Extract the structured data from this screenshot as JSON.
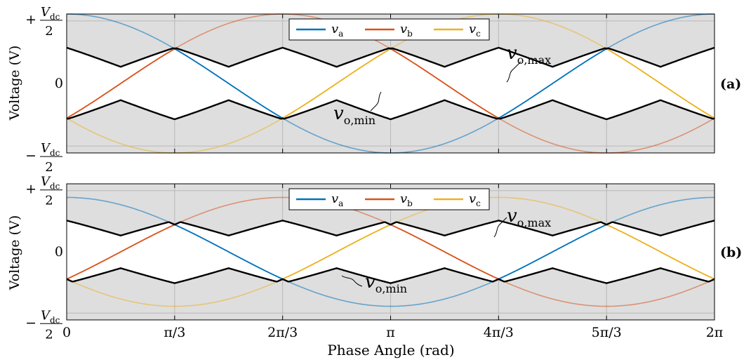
{
  "figure": {
    "xlabel": "Phase Angle (rad)",
    "ylabel": "Voltage (V)"
  },
  "yticks": {
    "top": {
      "sign": "+",
      "num": "V",
      "num_sub": "dc",
      "den": "2"
    },
    "mid": "0",
    "bot": {
      "sign": "−",
      "num": "V",
      "num_sub": "dc",
      "den": "2"
    }
  },
  "xticks": [
    "0",
    "π/3",
    "2π/3",
    "π",
    "4π/3",
    "5π/3",
    "2π"
  ],
  "legend": [
    {
      "key": "va",
      "sym": "v",
      "sub": "a",
      "color": "#0072BD"
    },
    {
      "key": "vb",
      "sym": "v",
      "sub": "b",
      "color": "#D95319"
    },
    {
      "key": "vc",
      "sym": "v",
      "sub": "c",
      "color": "#EDB120"
    }
  ],
  "annotations": {
    "vmax": {
      "sym": "v",
      "sub": "o,max"
    },
    "vmin": {
      "sym": "v",
      "sub": "o,min"
    }
  },
  "chart_data": [
    {
      "type": "line",
      "panel_label": "(a)",
      "x_range": [
        0,
        6.2832
      ],
      "y_range": [
        -0.5,
        0.5
      ],
      "grid": true,
      "legend_position": "top-center",
      "phase_amplitude": 0.5,
      "series": [
        {
          "name": "va",
          "function": "0.5·cos(θ)"
        },
        {
          "name": "vb",
          "function": "0.5·cos(θ − 2π/3)"
        },
        {
          "name": "vc",
          "function": "0.5·cos(θ + 2π/3)"
        }
      ],
      "envelope_peak_max": 0.25,
      "envelope_trough_min": -0.25
    },
    {
      "type": "line",
      "panel_label": "(b)",
      "x_range": [
        0,
        6.2832
      ],
      "y_range": [
        -0.5,
        0.5
      ],
      "grid": true,
      "legend_position": "top-center",
      "phase_amplitude": 0.4,
      "series": [
        {
          "name": "va",
          "function": "0.4·cos(θ)"
        },
        {
          "name": "vb",
          "function": "0.4·cos(θ − 2π/3)"
        },
        {
          "name": "vc",
          "function": "0.4·cos(θ + 2π/3)"
        }
      ],
      "envelope_peak_max": 0.25,
      "envelope_trough_min": -0.25
    }
  ]
}
